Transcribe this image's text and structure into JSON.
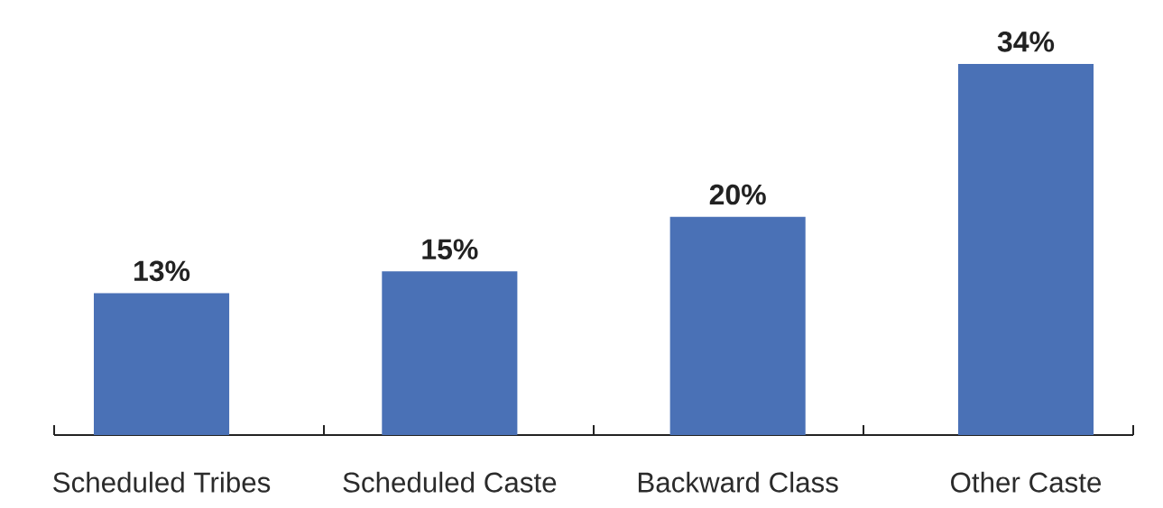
{
  "chart_data": {
    "type": "bar",
    "categories": [
      "Scheduled Tribes",
      "Scheduled Caste",
      "Backward Class",
      "Other Caste"
    ],
    "values": [
      13,
      15,
      20,
      34
    ],
    "value_labels": [
      "13%",
      "15%",
      "20%",
      "34%"
    ],
    "color": "#4a71b6"
  }
}
